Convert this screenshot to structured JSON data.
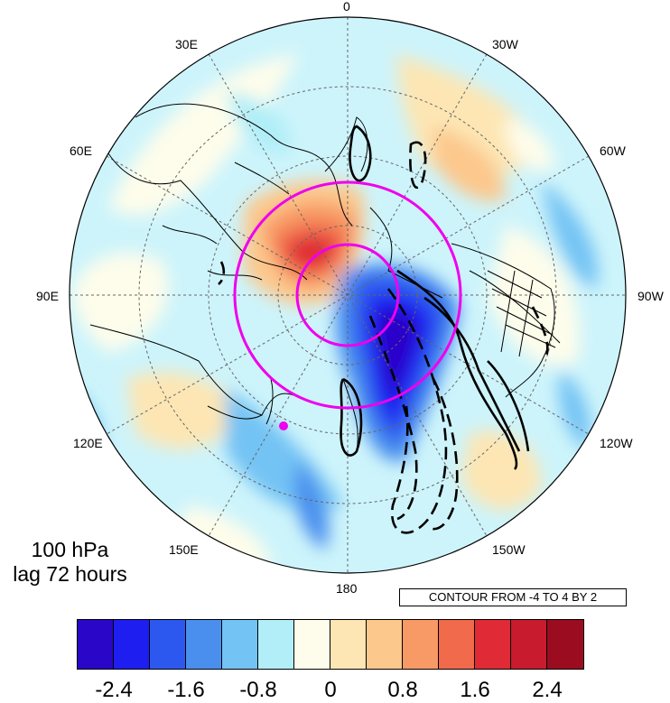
{
  "map": {
    "projection": "north-polar-stereographic",
    "longitude_labels": {
      "top": "0",
      "ne": "30W",
      "e_upper": "60W",
      "right": "90W",
      "e_lower": "120W",
      "se": "150W",
      "bottom": "180",
      "sw": "150E",
      "w_lower": "120E",
      "left": "90E",
      "w_upper": "60E",
      "nw": "30E"
    },
    "caption": {
      "level": "100 hPa",
      "lag": "lag 72 hours"
    },
    "contour_note": "CONTOUR FROM -4 TO 4 BY 2",
    "marker_color": "#ee00ee"
  },
  "colorbar": {
    "colors": [
      "#2a06c9",
      "#1e1ef0",
      "#2d58ef",
      "#4a8fee",
      "#73c3f4",
      "#b1eef8",
      "#fefdeb",
      "#fde6b4",
      "#fcc88c",
      "#f89a66",
      "#f06a4b",
      "#e02a36",
      "#c81b2e",
      "#9b0c21"
    ],
    "tick_labels": [
      "-2.4",
      "-1.6",
      "-0.8",
      "0",
      "0.8",
      "1.6",
      "2.4"
    ]
  }
}
